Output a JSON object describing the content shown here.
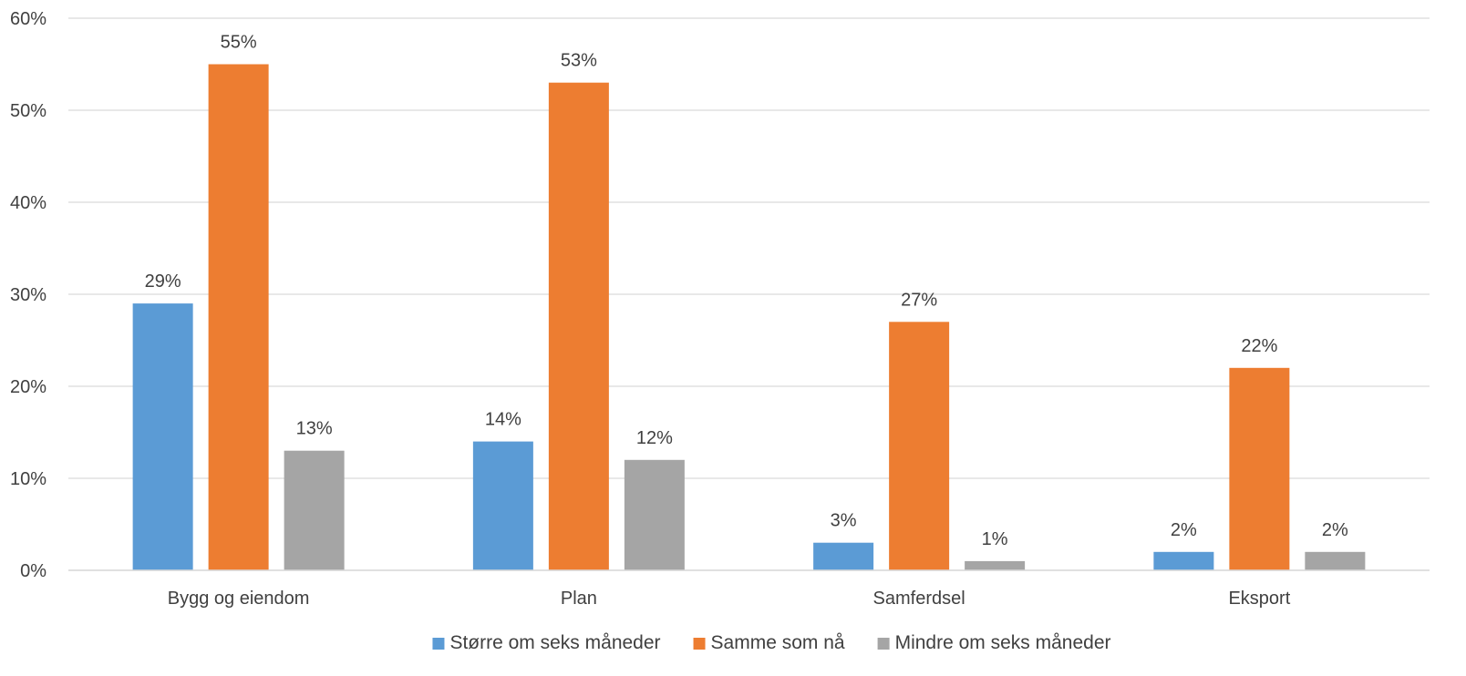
{
  "chart_data": {
    "type": "bar",
    "title": "",
    "xlabel": "",
    "ylabel": "",
    "categories": [
      "Bygg og eiendom",
      "Plan",
      "Samferdsel",
      "Eksport"
    ],
    "series": [
      {
        "name": "Større om seks måneder",
        "color": "#5B9BD5",
        "values": [
          29,
          14,
          3,
          2
        ]
      },
      {
        "name": "Samme som nå",
        "color": "#ED7D31",
        "values": [
          55,
          53,
          27,
          22
        ]
      },
      {
        "name": "Mindre om seks måneder",
        "color": "#A5A5A5",
        "values": [
          13,
          12,
          1,
          2
        ]
      }
    ],
    "ylim": [
      0,
      60
    ],
    "yticks": [
      0,
      10,
      20,
      30,
      40,
      50,
      60
    ],
    "value_suffix": "%",
    "grid": true,
    "gridline_color": "#D9D9D9",
    "data_labels": true,
    "legend_position": "bottom"
  }
}
